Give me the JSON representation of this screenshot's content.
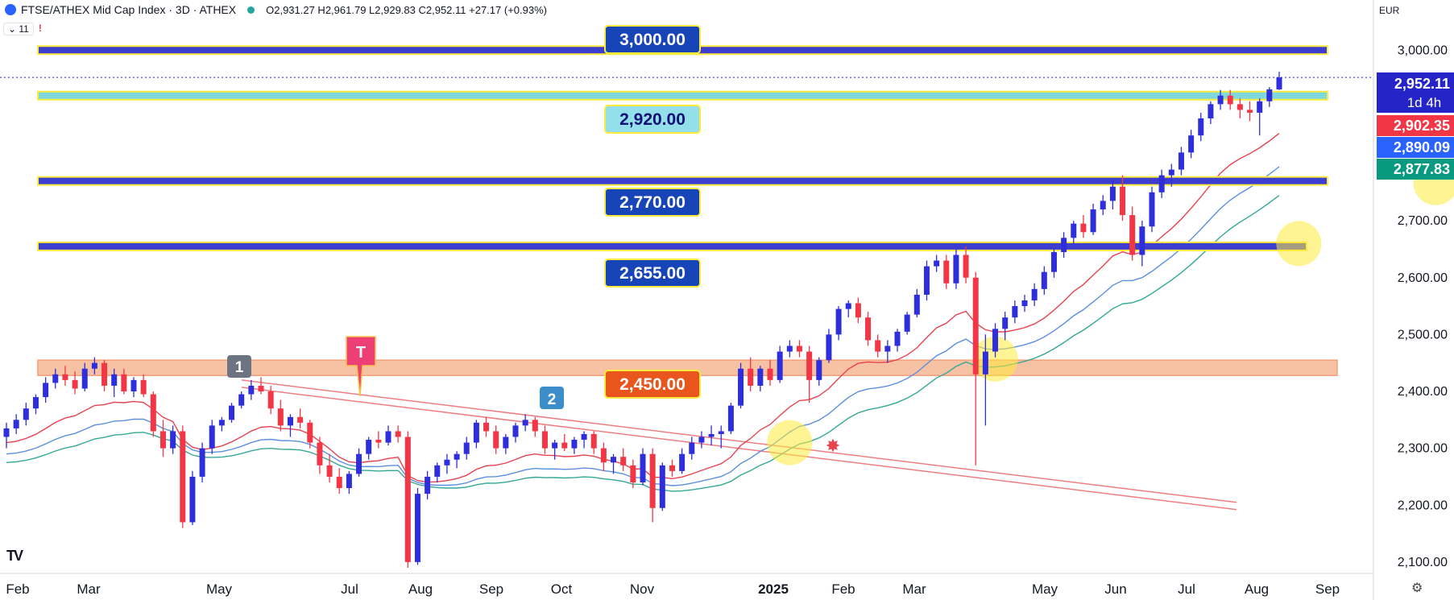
{
  "header": {
    "title": "FTSE/ATHEX Mid Cap Index · 3D · ATHEX",
    "ohlc": "O2,931.27 H2,961.79 L2,929.83 C2,952.11 +27.17 (+0.93%)",
    "indicator_count": "11",
    "alert": "!",
    "currency": "EUR"
  },
  "colors": {
    "up": "#2e2eda",
    "down": "#f23645",
    "level_fill": "#3d3dd0",
    "level_border": "#ffeb3b",
    "cyan_level": "#7fd8de",
    "zone": "#f7c1a3",
    "trendline": "#ef7e82",
    "ema_red": "#e8424e",
    "ema_blue": "#5b8fe0",
    "ema_teal": "#33a896",
    "highlight": "#ffeb3b"
  },
  "chart_data": {
    "type": "candlestick",
    "ylim": [
      2080,
      3040
    ],
    "y_ticks": [
      "3,000.00",
      "2,900.00",
      "2,800.00",
      "2,700.00",
      "2,600.00",
      "2,500.00",
      "2,400.00",
      "2,300.00",
      "2,200.00",
      "2,100.00"
    ],
    "y_tick_values": [
      3000,
      2900,
      2800,
      2700,
      2600,
      2500,
      2400,
      2300,
      2200,
      2100
    ],
    "x_tick_labels": [
      "Feb",
      "Mar",
      "May",
      "Jul",
      "Aug",
      "Sep",
      "Oct",
      "Nov",
      "2025",
      "Feb",
      "Mar",
      "May",
      "Jun",
      "Jul",
      "Aug",
      "Sep"
    ],
    "horizontal_levels": [
      {
        "value": 3000,
        "label": "3,000.00",
        "style": "blue"
      },
      {
        "value": 2920,
        "label": "2,920.00",
        "style": "cyan"
      },
      {
        "value": 2770,
        "label": "2,770.00",
        "style": "blue"
      },
      {
        "value": 2655,
        "label": "2,655.00",
        "style": "blue"
      }
    ],
    "zone": {
      "low": 2428,
      "high": 2455,
      "label": "2,450.00"
    },
    "price_tags": [
      {
        "value": 2952.11,
        "label": "2,952.11",
        "sublabel": "1d 4h",
        "color": "#2424c8"
      },
      {
        "value": 2902.35,
        "label": "2,902.35",
        "color": "#f23645"
      },
      {
        "value": 2890.09,
        "label": "2,890.09",
        "color": "#2962ff"
      },
      {
        "value": 2877.83,
        "label": "2,877.83",
        "color": "#089981"
      }
    ],
    "markers": [
      {
        "label": "1",
        "kind": "count"
      },
      {
        "label": "T",
        "kind": "touch"
      },
      {
        "label": "2",
        "kind": "count"
      }
    ],
    "trendline": {
      "start": 2420,
      "end": 2205
    },
    "candles": [
      [
        2320,
        2345,
        2300,
        2335
      ],
      [
        2335,
        2360,
        2325,
        2350
      ],
      [
        2350,
        2380,
        2340,
        2370
      ],
      [
        2370,
        2395,
        2360,
        2390
      ],
      [
        2390,
        2425,
        2380,
        2415
      ],
      [
        2415,
        2440,
        2405,
        2430
      ],
      [
        2430,
        2445,
        2410,
        2420
      ],
      [
        2420,
        2435,
        2395,
        2405
      ],
      [
        2405,
        2450,
        2400,
        2440
      ],
      [
        2440,
        2460,
        2430,
        2450
      ],
      [
        2450,
        2455,
        2400,
        2410
      ],
      [
        2410,
        2440,
        2390,
        2430
      ],
      [
        2430,
        2440,
        2395,
        2400
      ],
      [
        2400,
        2425,
        2390,
        2420
      ],
      [
        2420,
        2430,
        2390,
        2395
      ],
      [
        2395,
        2400,
        2320,
        2330
      ],
      [
        2330,
        2350,
        2285,
        2300
      ],
      [
        2300,
        2340,
        2290,
        2330
      ],
      [
        2330,
        2340,
        2160,
        2170
      ],
      [
        2170,
        2260,
        2165,
        2250
      ],
      [
        2250,
        2310,
        2240,
        2300
      ],
      [
        2300,
        2350,
        2290,
        2340
      ],
      [
        2340,
        2355,
        2330,
        2350
      ],
      [
        2350,
        2380,
        2345,
        2375
      ],
      [
        2375,
        2400,
        2370,
        2395
      ],
      [
        2395,
        2420,
        2385,
        2410
      ],
      [
        2410,
        2425,
        2395,
        2400
      ],
      [
        2400,
        2410,
        2360,
        2370
      ],
      [
        2370,
        2385,
        2330,
        2340
      ],
      [
        2340,
        2360,
        2320,
        2355
      ],
      [
        2355,
        2370,
        2335,
        2345
      ],
      [
        2345,
        2350,
        2300,
        2310
      ],
      [
        2310,
        2320,
        2255,
        2270
      ],
      [
        2270,
        2290,
        2240,
        2250
      ],
      [
        2250,
        2265,
        2220,
        2230
      ],
      [
        2230,
        2260,
        2220,
        2255
      ],
      [
        2255,
        2300,
        2250,
        2290
      ],
      [
        2290,
        2320,
        2280,
        2315
      ],
      [
        2315,
        2330,
        2300,
        2310
      ],
      [
        2310,
        2340,
        2305,
        2330
      ],
      [
        2330,
        2340,
        2310,
        2320
      ],
      [
        2320,
        2330,
        2090,
        2100
      ],
      [
        2100,
        2230,
        2095,
        2220
      ],
      [
        2220,
        2260,
        2210,
        2250
      ],
      [
        2250,
        2275,
        2240,
        2270
      ],
      [
        2270,
        2290,
        2255,
        2280
      ],
      [
        2280,
        2295,
        2265,
        2290
      ],
      [
        2290,
        2320,
        2280,
        2310
      ],
      [
        2310,
        2350,
        2300,
        2345
      ],
      [
        2345,
        2355,
        2320,
        2330
      ],
      [
        2330,
        2340,
        2290,
        2300
      ],
      [
        2300,
        2325,
        2290,
        2320
      ],
      [
        2320,
        2345,
        2310,
        2340
      ],
      [
        2340,
        2360,
        2330,
        2350
      ],
      [
        2350,
        2355,
        2320,
        2330
      ],
      [
        2330,
        2340,
        2290,
        2300
      ],
      [
        2300,
        2315,
        2280,
        2310
      ],
      [
        2310,
        2325,
        2295,
        2300
      ],
      [
        2300,
        2320,
        2290,
        2315
      ],
      [
        2315,
        2330,
        2300,
        2325
      ],
      [
        2325,
        2330,
        2290,
        2300
      ],
      [
        2300,
        2310,
        2260,
        2275
      ],
      [
        2275,
        2290,
        2255,
        2285
      ],
      [
        2285,
        2300,
        2260,
        2270
      ],
      [
        2270,
        2280,
        2230,
        2240
      ],
      [
        2240,
        2300,
        2235,
        2290
      ],
      [
        2290,
        2300,
        2170,
        2195
      ],
      [
        2195,
        2275,
        2190,
        2270
      ],
      [
        2270,
        2280,
        2250,
        2260
      ],
      [
        2260,
        2300,
        2255,
        2290
      ],
      [
        2290,
        2320,
        2280,
        2310
      ],
      [
        2310,
        2330,
        2300,
        2320
      ],
      [
        2320,
        2340,
        2305,
        2325
      ],
      [
        2325,
        2340,
        2300,
        2330
      ],
      [
        2330,
        2380,
        2325,
        2375
      ],
      [
        2375,
        2450,
        2370,
        2440
      ],
      [
        2440,
        2460,
        2400,
        2410
      ],
      [
        2410,
        2445,
        2400,
        2440
      ],
      [
        2440,
        2455,
        2410,
        2420
      ],
      [
        2420,
        2480,
        2415,
        2470
      ],
      [
        2470,
        2490,
        2460,
        2480
      ],
      [
        2480,
        2490,
        2460,
        2470
      ],
      [
        2470,
        2480,
        2380,
        2420
      ],
      [
        2420,
        2460,
        2410,
        2455
      ],
      [
        2455,
        2510,
        2450,
        2500
      ],
      [
        2500,
        2550,
        2490,
        2545
      ],
      [
        2545,
        2560,
        2530,
        2555
      ],
      [
        2555,
        2565,
        2520,
        2530
      ],
      [
        2530,
        2540,
        2480,
        2490
      ],
      [
        2490,
        2500,
        2460,
        2470
      ],
      [
        2470,
        2490,
        2450,
        2480
      ],
      [
        2480,
        2510,
        2470,
        2505
      ],
      [
        2505,
        2540,
        2500,
        2535
      ],
      [
        2535,
        2580,
        2530,
        2570
      ],
      [
        2570,
        2630,
        2560,
        2620
      ],
      [
        2620,
        2640,
        2610,
        2630
      ],
      [
        2630,
        2640,
        2580,
        2590
      ],
      [
        2590,
        2650,
        2580,
        2640
      ],
      [
        2640,
        2655,
        2590,
        2600
      ],
      [
        2600,
        2610,
        2270,
        2430
      ],
      [
        2430,
        2500,
        2340,
        2470
      ],
      [
        2470,
        2520,
        2460,
        2510
      ],
      [
        2510,
        2540,
        2490,
        2530
      ],
      [
        2530,
        2560,
        2520,
        2550
      ],
      [
        2550,
        2570,
        2540,
        2560
      ],
      [
        2560,
        2590,
        2550,
        2580
      ],
      [
        2580,
        2620,
        2570,
        2610
      ],
      [
        2610,
        2650,
        2600,
        2645
      ],
      [
        2645,
        2680,
        2635,
        2670
      ],
      [
        2670,
        2700,
        2660,
        2695
      ],
      [
        2695,
        2710,
        2670,
        2680
      ],
      [
        2680,
        2730,
        2675,
        2720
      ],
      [
        2720,
        2745,
        2710,
        2735
      ],
      [
        2735,
        2770,
        2720,
        2760
      ],
      [
        2760,
        2780,
        2700,
        2710
      ],
      [
        2710,
        2725,
        2630,
        2640
      ],
      [
        2640,
        2700,
        2620,
        2690
      ],
      [
        2690,
        2760,
        2680,
        2750
      ],
      [
        2750,
        2790,
        2740,
        2780
      ],
      [
        2780,
        2800,
        2760,
        2790
      ],
      [
        2790,
        2830,
        2780,
        2820
      ],
      [
        2820,
        2860,
        2810,
        2850
      ],
      [
        2850,
        2890,
        2840,
        2880
      ],
      [
        2880,
        2910,
        2870,
        2905
      ],
      [
        2905,
        2930,
        2895,
        2920
      ],
      [
        2920,
        2930,
        2895,
        2905
      ],
      [
        2905,
        2915,
        2880,
        2895
      ],
      [
        2895,
        2910,
        2875,
        2890
      ],
      [
        2890,
        2915,
        2850,
        2910
      ],
      [
        2910,
        2935,
        2900,
        2931
      ],
      [
        2931,
        2962,
        2930,
        2952
      ]
    ]
  }
}
